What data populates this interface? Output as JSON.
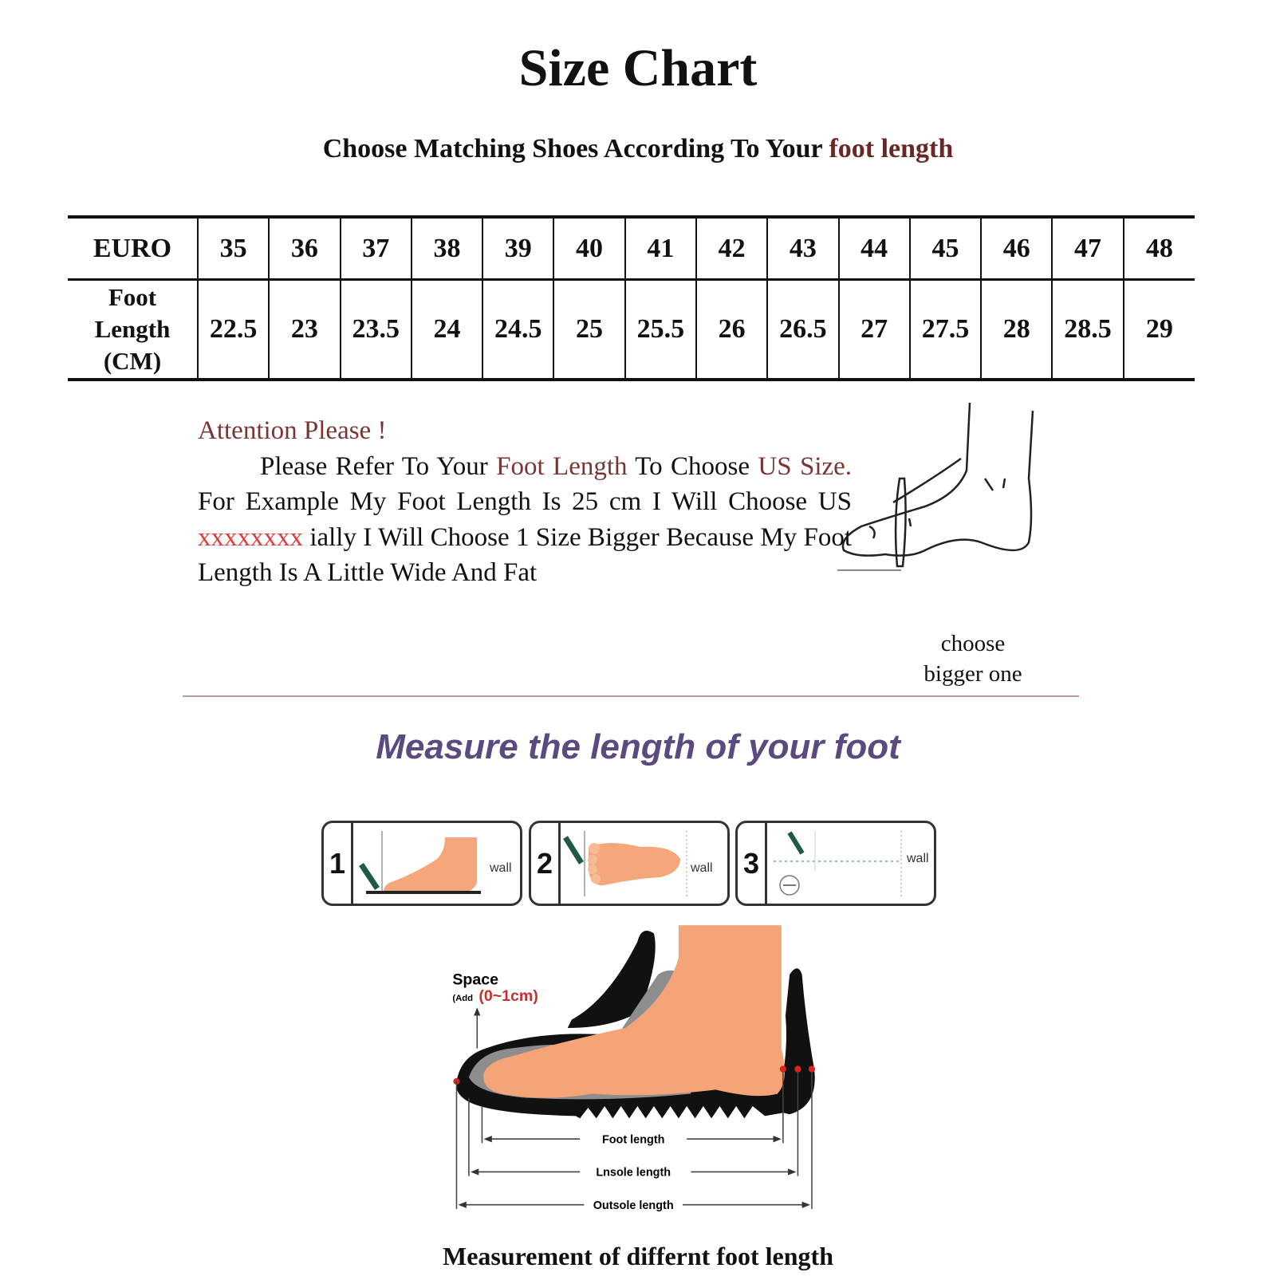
{
  "title": "Size Chart",
  "subtitle": {
    "prefix": "Choose Matching Shoes According To Your",
    "highlight": "foot length"
  },
  "size_table": {
    "row_headers": {
      "euro": "EURO",
      "foot_length": [
        "Foot",
        "Length",
        "(CM)"
      ]
    },
    "euro": [
      "35",
      "36",
      "37",
      "38",
      "39",
      "40",
      "41",
      "42",
      "43",
      "44",
      "45",
      "46",
      "47",
      "48"
    ],
    "foot_length_cm": [
      "22.5",
      "23",
      "23.5",
      "24",
      "24.5",
      "25",
      "25.5",
      "26",
      "26.5",
      "27",
      "27.5",
      "28",
      "28.5",
      "29"
    ]
  },
  "attention": {
    "heading": "Attention Please !",
    "p1": "Please Refer To Your",
    "p1_hl": "Foot Length",
    "p2": "To Choose",
    "p3_hl": "US Size.",
    "p4": "For Example My Foot Length Is 25 cm I Will Choose US",
    "p5_red": "xxxxxxxx",
    "p6": "ially I Will Choose 1 Size Bigger Because My Foot Length Is A Little Wide And Fat"
  },
  "choose_note": [
    "choose",
    "bigger one"
  ],
  "measure_title": "Measure the length of your foot",
  "steps": [
    {
      "number": "1",
      "label": "wall"
    },
    {
      "number": "2",
      "label": "wall"
    },
    {
      "number": "3",
      "label": "wall"
    }
  ],
  "diagram": {
    "space_label": "Space",
    "add_prefix": "(Add",
    "add_value": "(0~1cm)",
    "foot_length": "Foot length",
    "insole_length": "Lnsole length",
    "outsole_length": "Outsole length"
  },
  "caption": "Measurement of differnt foot length",
  "colors": {
    "brown_highlight": "#7a3434",
    "red_placeholder": "#e03a3a",
    "measure_title": "#5b4a80",
    "skin": "#f4a77a",
    "divider": "#b89898"
  }
}
